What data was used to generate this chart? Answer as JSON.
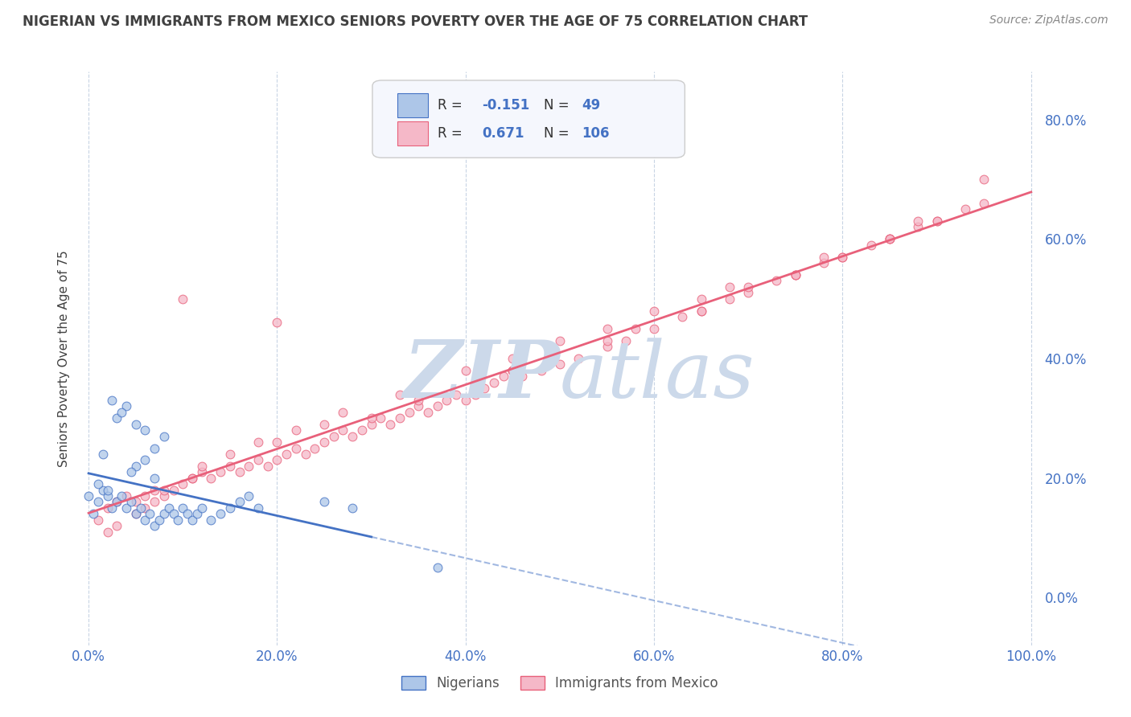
{
  "title": "NIGERIAN VS IMMIGRANTS FROM MEXICO SENIORS POVERTY OVER THE AGE OF 75 CORRELATION CHART",
  "source": "Source: ZipAtlas.com",
  "ylabel": "Seniors Poverty Over the Age of 75",
  "r_nigerian": -0.151,
  "n_nigerian": 49,
  "r_mexico": 0.671,
  "n_mexico": 106,
  "nigerian_color": "#adc6e8",
  "mexico_color": "#f5b8c8",
  "nigerian_line_color": "#4472c4",
  "mexico_line_color": "#e8607a",
  "watermark_color": "#ccd9ea",
  "background_color": "#ffffff",
  "grid_color": "#c8d4e4",
  "tick_label_color": "#4472c4",
  "title_color": "#404040",
  "ylabel_color": "#404040",
  "legend_bg": "#f5f7fd",
  "legend_border": "#cccccc",
  "nigerian_x": [
    0.5,
    1.0,
    1.5,
    2.0,
    2.5,
    3.0,
    3.5,
    4.0,
    4.5,
    5.0,
    5.5,
    6.0,
    6.5,
    7.0,
    7.5,
    8.0,
    8.5,
    9.0,
    9.5,
    10.0,
    10.5,
    11.0,
    11.5,
    12.0,
    13.0,
    14.0,
    15.0,
    16.0,
    17.0,
    18.0,
    5.0,
    6.0,
    7.0,
    8.0,
    3.0,
    4.0,
    5.0,
    6.0,
    7.0,
    2.0,
    1.0,
    0.0,
    2.5,
    3.5,
    4.5,
    1.5,
    25.0,
    28.0,
    37.0
  ],
  "nigerian_y": [
    14.0,
    16.0,
    18.0,
    17.0,
    15.0,
    16.0,
    17.0,
    15.0,
    16.0,
    14.0,
    15.0,
    13.0,
    14.0,
    12.0,
    13.0,
    14.0,
    15.0,
    14.0,
    13.0,
    15.0,
    14.0,
    13.0,
    14.0,
    15.0,
    13.0,
    14.0,
    15.0,
    16.0,
    17.0,
    15.0,
    22.0,
    23.0,
    25.0,
    27.0,
    30.0,
    32.0,
    29.0,
    28.0,
    20.0,
    18.0,
    19.0,
    17.0,
    33.0,
    31.0,
    21.0,
    24.0,
    16.0,
    15.0,
    5.0
  ],
  "mexico_x": [
    1.0,
    2.0,
    3.0,
    4.0,
    5.0,
    6.0,
    7.0,
    8.0,
    9.0,
    10.0,
    11.0,
    12.0,
    13.0,
    14.0,
    15.0,
    16.0,
    17.0,
    18.0,
    19.0,
    20.0,
    21.0,
    22.0,
    23.0,
    24.0,
    25.0,
    26.0,
    27.0,
    28.0,
    29.0,
    30.0,
    31.0,
    32.0,
    33.0,
    34.0,
    35.0,
    36.0,
    37.0,
    38.0,
    39.0,
    40.0,
    41.0,
    42.0,
    43.0,
    44.0,
    45.0,
    46.0,
    48.0,
    50.0,
    52.0,
    55.0,
    57.0,
    60.0,
    63.0,
    65.0,
    68.0,
    70.0,
    73.0,
    75.0,
    78.0,
    80.0,
    83.0,
    85.0,
    88.0,
    90.0,
    93.0,
    95.0,
    5.0,
    8.0,
    12.0,
    18.0,
    22.0,
    27.0,
    33.0,
    40.0,
    45.0,
    50.0,
    55.0,
    60.0,
    65.0,
    70.0,
    75.0,
    80.0,
    85.0,
    90.0,
    3.0,
    7.0,
    15.0,
    25.0,
    35.0,
    45.0,
    55.0,
    65.0,
    75.0,
    85.0,
    2.0,
    6.0,
    11.0,
    20.0,
    30.0,
    45.0,
    58.0,
    68.0,
    78.0,
    88.0,
    95.0,
    10.0,
    20.0
  ],
  "mexico_y": [
    13.0,
    15.0,
    16.0,
    17.0,
    16.0,
    17.0,
    18.0,
    17.0,
    18.0,
    19.0,
    20.0,
    21.0,
    20.0,
    21.0,
    22.0,
    21.0,
    22.0,
    23.0,
    22.0,
    23.0,
    24.0,
    25.0,
    24.0,
    25.0,
    26.0,
    27.0,
    28.0,
    27.0,
    28.0,
    29.0,
    30.0,
    29.0,
    30.0,
    31.0,
    32.0,
    31.0,
    32.0,
    33.0,
    34.0,
    33.0,
    34.0,
    35.0,
    36.0,
    37.0,
    38.0,
    37.0,
    38.0,
    39.0,
    40.0,
    42.0,
    43.0,
    45.0,
    47.0,
    48.0,
    50.0,
    51.0,
    53.0,
    54.0,
    56.0,
    57.0,
    59.0,
    60.0,
    62.0,
    63.0,
    65.0,
    66.0,
    14.0,
    18.0,
    22.0,
    26.0,
    28.0,
    31.0,
    34.0,
    38.0,
    40.0,
    43.0,
    45.0,
    48.0,
    50.0,
    52.0,
    54.0,
    57.0,
    60.0,
    63.0,
    12.0,
    16.0,
    24.0,
    29.0,
    33.0,
    38.0,
    43.0,
    48.0,
    54.0,
    60.0,
    11.0,
    15.0,
    20.0,
    26.0,
    30.0,
    38.0,
    45.0,
    52.0,
    57.0,
    63.0,
    70.0,
    50.0,
    46.0
  ],
  "xlim": [
    -1,
    101
  ],
  "ylim": [
    -8,
    88
  ],
  "xticks": [
    0,
    20,
    40,
    60,
    80,
    100
  ],
  "yticks": [
    0,
    20,
    40,
    60,
    80
  ],
  "xticklabels": [
    "0.0%",
    "20.0%",
    "40.0%",
    "60.0%",
    "80.0%",
    "100.0%"
  ],
  "yticklabels": [
    "0.0%",
    "20.0%",
    "40.0%",
    "60.0%",
    "80.0%"
  ],
  "figsize": [
    14.06,
    8.92
  ],
  "dpi": 100
}
